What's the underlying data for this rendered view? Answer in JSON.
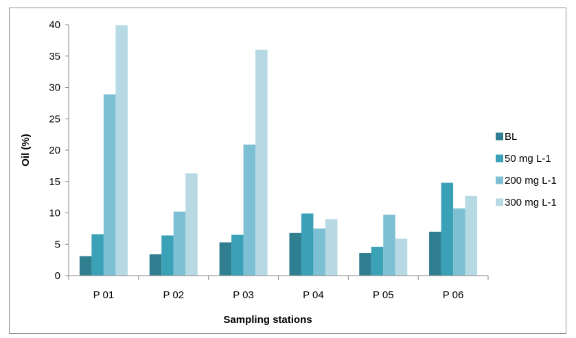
{
  "chart_data": {
    "type": "bar",
    "title": "",
    "xlabel": "Sampling stations",
    "ylabel": "Oil (%)",
    "ylim": [
      0,
      40
    ],
    "yticks": [
      0,
      5,
      10,
      15,
      20,
      25,
      30,
      35,
      40
    ],
    "categories": [
      "P 01",
      "P 02",
      "P 03",
      "P 04",
      "P 05",
      "P 06"
    ],
    "series": [
      {
        "name": "BL",
        "color": "#2f7f91",
        "values": [
          3.1,
          3.4,
          5.3,
          6.8,
          3.6,
          7.0
        ]
      },
      {
        "name": "50 mg L-1",
        "color": "#3aa1b7",
        "values": [
          6.6,
          6.4,
          6.5,
          9.9,
          4.6,
          14.8
        ]
      },
      {
        "name": "200 mg L-1",
        "color": "#7dbfd3",
        "values": [
          28.9,
          10.2,
          20.9,
          7.5,
          9.7,
          10.7
        ]
      },
      {
        "name": "300 mg L-1",
        "color": "#b6d9e4",
        "values": [
          39.9,
          16.3,
          36.0,
          9.0,
          5.9,
          12.7
        ]
      }
    ],
    "grid": false,
    "legend": "right"
  }
}
